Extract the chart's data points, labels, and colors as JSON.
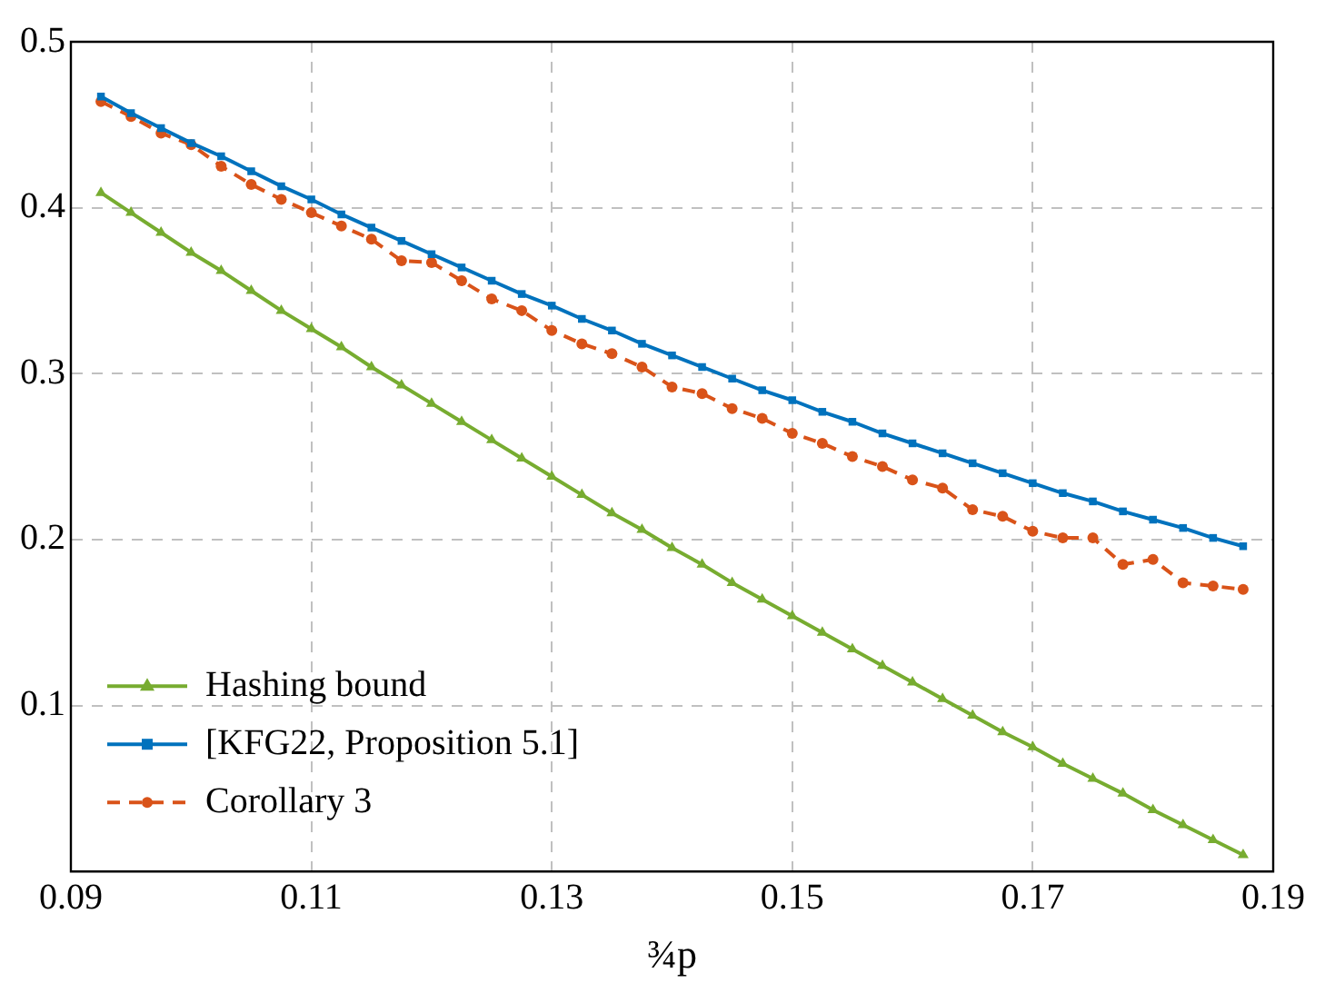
{
  "chart_data": {
    "type": "line",
    "xlabel": "¾p",
    "xlim": [
      0.09,
      0.19
    ],
    "xticks": [
      0.09,
      0.11,
      0.13,
      0.15,
      0.17,
      0.19
    ],
    "ylim": [
      0,
      0.5
    ],
    "yticks": [
      0.1,
      0.2,
      0.3,
      0.4,
      0.5
    ],
    "grid": true,
    "legend": "bottom left",
    "x": [
      0.0925,
      0.095,
      0.0975,
      0.1,
      0.1025,
      0.105,
      0.1075,
      0.11,
      0.1125,
      0.115,
      0.1175,
      0.12,
      0.1225,
      0.125,
      0.1275,
      0.13,
      0.1325,
      0.135,
      0.1375,
      0.14,
      0.1425,
      0.145,
      0.1475,
      0.15,
      0.1525,
      0.155,
      0.1575,
      0.16,
      0.1625,
      0.165,
      0.1675,
      0.17,
      0.1725,
      0.175,
      0.1775,
      0.18,
      0.1825,
      0.185,
      0.1875
    ],
    "series": [
      {
        "name": "Hashing bound",
        "color": "#77ac30",
        "marker": "triangle",
        "line_style": "solid",
        "values": [
          0.409,
          0.397,
          0.385,
          0.373,
          0.362,
          0.35,
          0.338,
          0.327,
          0.316,
          0.304,
          0.293,
          0.282,
          0.271,
          0.26,
          0.249,
          0.238,
          0.227,
          0.216,
          0.206,
          0.195,
          0.185,
          0.174,
          0.164,
          0.154,
          0.144,
          0.134,
          0.124,
          0.114,
          0.104,
          0.094,
          0.084,
          0.075,
          0.065,
          0.056,
          0.047,
          0.037,
          0.028,
          0.019,
          0.01
        ]
      },
      {
        "name": "[KFG22, Proposition 5.1]",
        "color": "#0072bd",
        "marker": "square",
        "line_style": "solid",
        "values": [
          0.467,
          0.457,
          0.448,
          0.439,
          0.431,
          0.422,
          0.413,
          0.405,
          0.396,
          0.388,
          0.38,
          0.372,
          0.364,
          0.356,
          0.348,
          0.341,
          0.333,
          0.326,
          0.318,
          0.311,
          0.304,
          0.297,
          0.29,
          0.284,
          0.277,
          0.271,
          0.264,
          0.258,
          0.252,
          0.246,
          0.24,
          0.234,
          0.228,
          0.223,
          0.217,
          0.212,
          0.207,
          0.201,
          0.196
        ]
      },
      {
        "name": "Corollary 3",
        "color": "#d95319",
        "marker": "circle",
        "line_style": "dashed",
        "values": [
          0.464,
          0.455,
          0.445,
          0.438,
          0.425,
          0.414,
          0.405,
          0.397,
          0.389,
          0.381,
          0.368,
          0.367,
          0.356,
          0.345,
          0.338,
          0.326,
          0.318,
          0.312,
          0.304,
          0.292,
          0.288,
          0.279,
          0.273,
          0.264,
          0.258,
          0.25,
          0.244,
          0.236,
          0.231,
          0.218,
          0.214,
          0.205,
          0.201,
          0.201,
          0.185,
          0.188,
          0.174,
          0.172,
          0.17
        ]
      }
    ]
  }
}
